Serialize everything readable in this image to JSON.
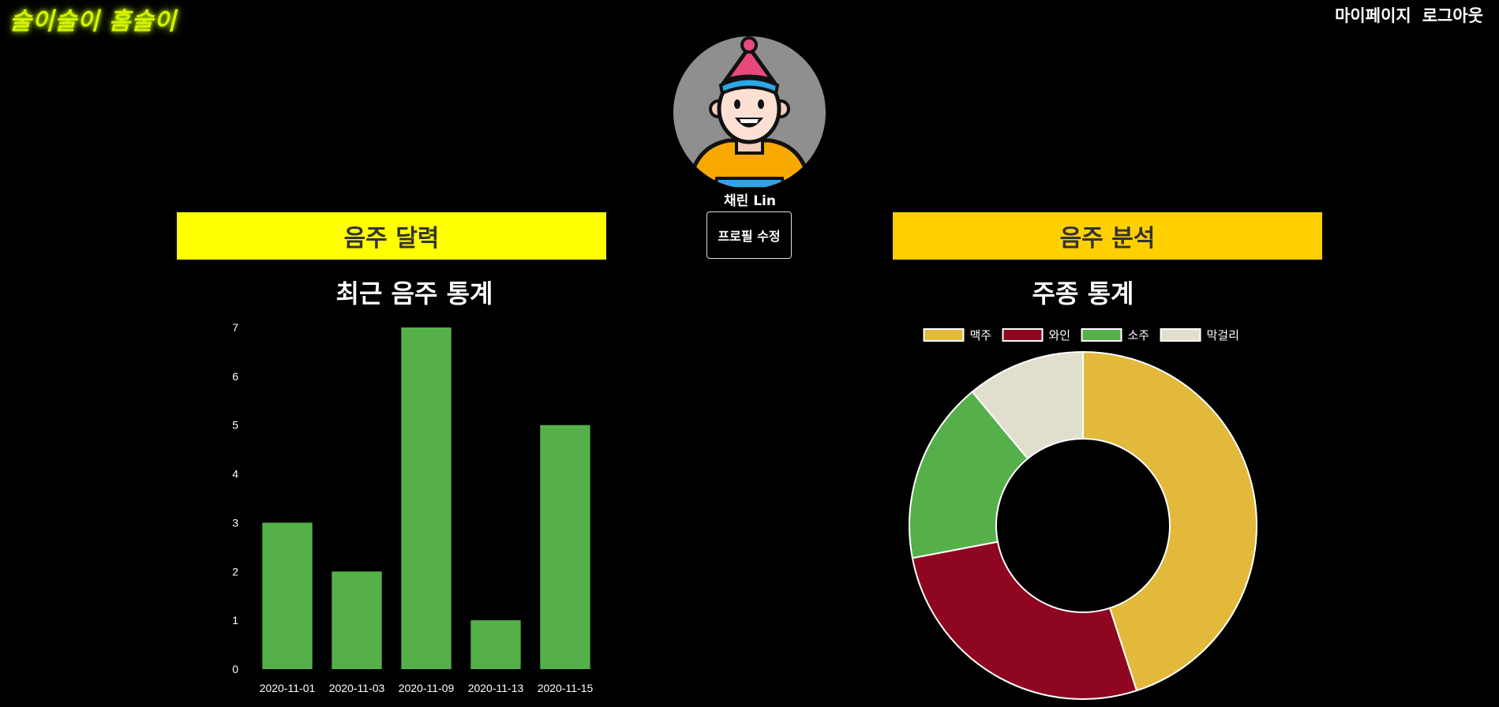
{
  "header": {
    "logo_text": "술이술이 홈술이",
    "nav": [
      {
        "label": "마이페이지"
      },
      {
        "label": "로그아웃"
      }
    ]
  },
  "profile": {
    "name": "채린 Lin",
    "edit_button_label": "프로필 수정"
  },
  "panels": {
    "left_title": "음주 달력",
    "right_title": "음주 분석",
    "left_color": "#ffff00",
    "right_color": "#ffd000"
  },
  "chart_data": [
    {
      "type": "bar",
      "title": "최근 음주 통계",
      "categories": [
        "2020-11-01",
        "2020-11-03",
        "2020-11-09",
        "2020-11-13",
        "2020-11-15"
      ],
      "values": [
        3,
        2,
        7,
        1,
        5
      ],
      "ylim": [
        0,
        7
      ],
      "yticks": [
        0,
        1,
        2,
        3,
        4,
        5,
        6,
        7
      ],
      "bar_color": "#56b04a",
      "grid": false
    },
    {
      "type": "pie",
      "donut": true,
      "title": "주종 통계",
      "legend_position": "top",
      "labels": [
        "맥주",
        "와인",
        "소주",
        "막걸리"
      ],
      "values": [
        45,
        27,
        17,
        11
      ],
      "colors": [
        "#e2b93b",
        "#8e0620",
        "#56b04a",
        "#e1dece"
      ]
    }
  ]
}
